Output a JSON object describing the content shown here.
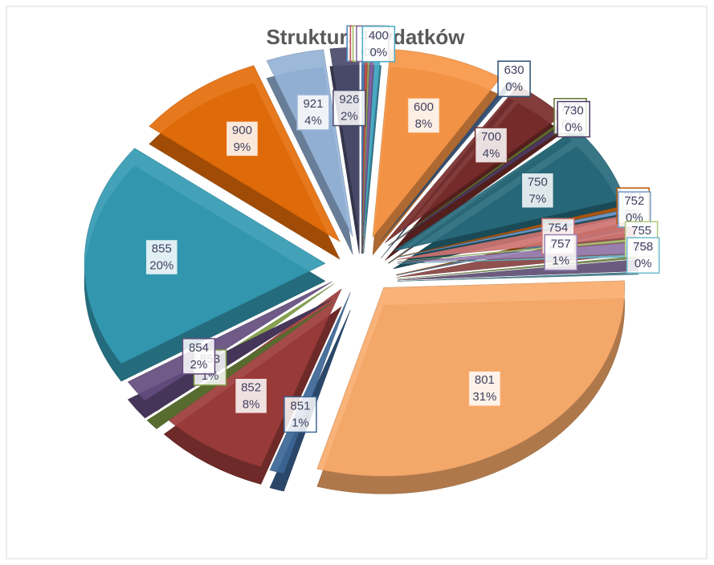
{
  "chart_data": {
    "type": "pie",
    "title": "Struktura wydatków",
    "categories": [
      "010",
      "020",
      "100",
      "150",
      "400",
      "600",
      "630",
      "700",
      "710",
      "730",
      "750",
      "751",
      "752",
      "754",
      "755",
      "757",
      "758",
      "801",
      "851",
      "852",
      "853",
      "854",
      "855",
      "900",
      "921",
      "926"
    ],
    "values": [
      0.2,
      0.2,
      0.1,
      0.3,
      0.4,
      8,
      0.4,
      4,
      0.2,
      0.4,
      7,
      0.3,
      0.3,
      2,
      0.2,
      1,
      0.2,
      31,
      1,
      8,
      1,
      2,
      20,
      9,
      4,
      2
    ],
    "value_labels": [
      "0%",
      "0%",
      "0%",
      "0%",
      "0%",
      "8%",
      "0%",
      "4%",
      "0%",
      "0%",
      "7%",
      "0%",
      "0%",
      "2%",
      "0%",
      "1%",
      "0%",
      "31%",
      "1%",
      "8%",
      "1%",
      "2%",
      "20%",
      "9%",
      "4%",
      "2%"
    ],
    "colors": [
      "#4f81bd",
      "#c0504d",
      "#9bbb59",
      "#8064a2",
      "#4bacc6",
      "#f79646",
      "#2c4d75",
      "#772c2a",
      "#5f7530",
      "#4d3b62",
      "#276a7c",
      "#b65708",
      "#729aca",
      "#cd7371",
      "#afc97a",
      "#9983b5",
      "#6fbdd1",
      "#f9ab6b",
      "#3c6696",
      "#9c3c3a",
      "#7c9a41",
      "#634c7e",
      "#339ab2",
      "#e46c0a",
      "#95b3d7",
      "#4a4a6a"
    ]
  }
}
